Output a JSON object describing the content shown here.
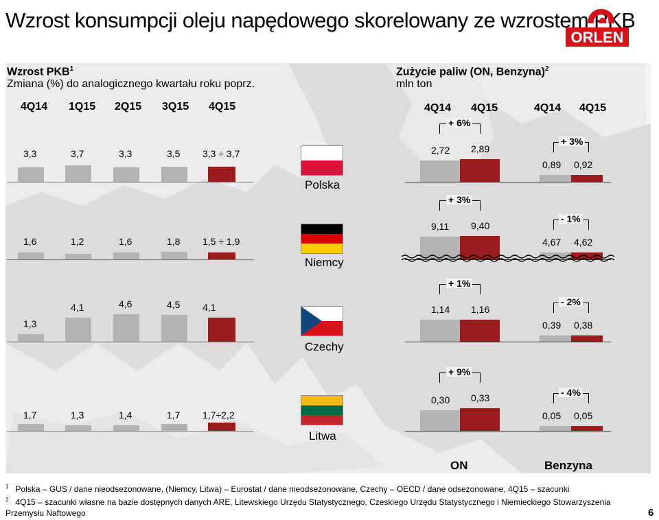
{
  "title": "Wzrost konsumpcji oleju napędowego skorelowany ze wzrostem PKB",
  "logo_text": "ORLEN",
  "gdp": {
    "heading": "Wzrost PKB",
    "heading_sup": "1",
    "subheading": "Zmiana (%) do analogicznego kwartału roku poprz.",
    "quarters": [
      "4Q14",
      "1Q15",
      "2Q15",
      "3Q15",
      "4Q15"
    ]
  },
  "fuel": {
    "heading": "Zużycie paliw (ON, Benzyna)",
    "heading_sup": "2",
    "unit": "mln ton",
    "quarters": [
      "4Q14",
      "4Q15",
      "4Q14",
      "4Q15"
    ],
    "legend_on": "ON",
    "legend_benzyna": "Benzyna"
  },
  "chart_data": {
    "type": "bar",
    "countries": [
      {
        "name": "Polska",
        "flag": [
          "#ffffff",
          "#dc143c"
        ],
        "gdp_values": [
          3.3,
          3.7,
          3.3,
          3.5,
          3.5
        ],
        "gdp_labels": [
          "3,3",
          "3,7",
          "3,3",
          "3,5",
          "3,3 ÷ 3,7"
        ],
        "on_values": [
          2.72,
          2.89
        ],
        "on_labels": [
          "2,72",
          "2,89"
        ],
        "on_change": "+ 6%",
        "benz_values": [
          0.89,
          0.92
        ],
        "benz_labels": [
          "0,89",
          "0,92"
        ],
        "benz_change": "+ 3%"
      },
      {
        "name": "Niemcy",
        "flag": [
          "#000000",
          "#dd0000",
          "#ffce00"
        ],
        "gdp_values": [
          1.6,
          1.2,
          1.6,
          1.8,
          1.7
        ],
        "gdp_labels": [
          "1,6",
          "1,2",
          "1,6",
          "1,8",
          "1,5 ÷ 1,9"
        ],
        "on_values": [
          9.11,
          9.4
        ],
        "on_labels": [
          "9,11",
          "9,40"
        ],
        "on_change": "+ 3%",
        "benz_values": [
          4.67,
          4.62
        ],
        "benz_labels": [
          "4,67",
          "4,62"
        ],
        "benz_change": "- 1%"
      },
      {
        "name": "Czechy",
        "flag": [
          "#ffffff",
          "#d7141a",
          "#11457e"
        ],
        "gdp_values": [
          1.3,
          4.1,
          4.6,
          4.5,
          4.1
        ],
        "gdp_labels": [
          "1,3",
          "4,1",
          "4,6",
          "4,5",
          "4,1"
        ],
        "on_values": [
          1.14,
          1.16
        ],
        "on_labels": [
          "1,14",
          "1,16"
        ],
        "on_change": "+ 1%",
        "benz_values": [
          0.39,
          0.38
        ],
        "benz_labels": [
          "0,39",
          "0,38"
        ],
        "benz_change": "- 2%"
      },
      {
        "name": "Litwa",
        "flag": [
          "#fdb913",
          "#006a44",
          "#c1272d"
        ],
        "gdp_values": [
          1.7,
          1.3,
          1.4,
          1.7,
          1.95
        ],
        "gdp_labels": [
          "1,7",
          "1,3",
          "1,4",
          "1,7",
          "1,7÷2,2"
        ],
        "on_values": [
          0.3,
          0.33
        ],
        "on_labels": [
          "0,30",
          "0,33"
        ],
        "on_change": "+ 9%",
        "benz_values": [
          0.05,
          0.05
        ],
        "benz_labels": [
          "0,05",
          "0,05"
        ],
        "benz_change": "- 4%"
      }
    ],
    "colors": {
      "actual": "#b3b3b3",
      "estimate": "#9b1c1c"
    }
  },
  "footnotes": [
    {
      "num": "1",
      "text": "Polska – GUS / dane nieodsezonowane, (Niemcy, Litwa) – Eurostat /  dane nieodsezonowane, Czechy – OECD / dane odsezonowane, 4Q15 – szacunki"
    },
    {
      "num": "2",
      "text": "4Q15 – szacunki własne na bazie dostępnych danych ARE, Litewskiego Urzędu Statystycznego, Czeskiego Urzędu Statystycznego i Niemieckiego Stowarzyszenia"
    },
    {
      "num": "",
      "text": "Przemysłu Naftowego"
    }
  ],
  "page_number": "6"
}
